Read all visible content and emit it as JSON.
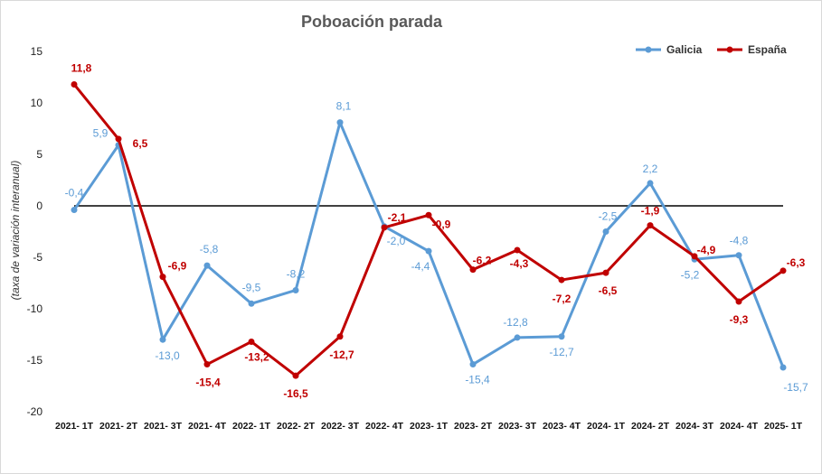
{
  "chart_data": {
    "type": "line",
    "title": "Poboación parada",
    "ylabel": "(taxa de variación interanual)",
    "xlabel": "",
    "ylim": [
      -20,
      15
    ],
    "yticks": [
      15,
      10,
      5,
      0,
      -5,
      -10,
      -15,
      -20
    ],
    "grid": false,
    "legend_position": "top-right",
    "categories": [
      "2021- 1T",
      "2021- 2T",
      "2021- 3T",
      "2021- 4T",
      "2022- 1T",
      "2022- 2T",
      "2022- 3T",
      "2022- 4T",
      "2023- 1T",
      "2023- 2T",
      "2023- 3T",
      "2023- 4T",
      "2024- 1T",
      "2024- 2T",
      "2024- 3T",
      "2024- 4T",
      "2025- 1T"
    ],
    "series": [
      {
        "name": "Galicia",
        "color": "#5B9BD5",
        "values": [
          -0.4,
          5.9,
          -13.0,
          -5.8,
          -9.5,
          -8.2,
          8.1,
          -2.0,
          -4.4,
          -15.4,
          -12.8,
          -12.7,
          -2.5,
          2.2,
          -5.2,
          -4.8,
          -15.7
        ],
        "labels": [
          "-0,4",
          "5,9",
          "-13,0",
          "-5,8",
          "-9,5",
          "-8,2",
          "8,1",
          "-2,0",
          "-4,4",
          "-15,4",
          "-12,8",
          "-12,7",
          "-2,5",
          "2,2",
          "-5,2",
          "-4,8",
          "-15,7"
        ]
      },
      {
        "name": "España",
        "color": "#C00000",
        "values": [
          11.8,
          6.5,
          -6.9,
          -15.4,
          -13.2,
          -16.5,
          -12.7,
          -2.1,
          -0.9,
          -6.2,
          -4.3,
          -7.2,
          -6.5,
          -1.9,
          -4.9,
          -9.3,
          -6.3
        ],
        "labels": [
          "11,8",
          "6,5",
          "-6,9",
          "-15,4",
          "-13,2",
          "-16,5",
          "-12,7",
          "-2,1",
          "-0,9",
          "-6,2",
          "-4,3",
          "-7,2",
          "-6,5",
          "-1,9",
          "-4,9",
          "-9,3",
          "-6,3"
        ]
      }
    ]
  }
}
